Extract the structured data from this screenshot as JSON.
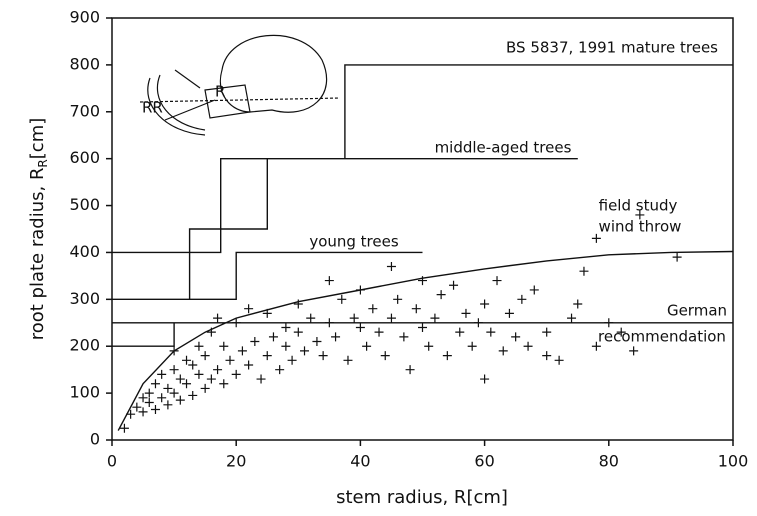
{
  "chart_data": {
    "type": "scatter",
    "xlabel": "stem radius, R[cm]",
    "ylabel": {
      "text": "root plate radius, R",
      "sub": "R",
      "end": "[cm]"
    },
    "xlim": [
      0,
      100
    ],
    "xticks": [
      0,
      20,
      40,
      60,
      80,
      100
    ],
    "ylim": [
      0,
      900
    ],
    "yticks": [
      0,
      100,
      200,
      300,
      400,
      500,
      600,
      700,
      800,
      900
    ],
    "grid": false,
    "color": "#111111",
    "inset_labels": [
      "R",
      "RR"
    ],
    "annotations": [
      "BS 5837, 1991 mature trees",
      "middle-aged trees",
      "young trees",
      "field study",
      "wind throw",
      "German",
      "recommendation"
    ],
    "lines": [
      {
        "x": [
          0,
          17.5,
          17.5,
          75
        ],
        "y": [
          400,
          400,
          600,
          600
        ]
      },
      {
        "x": [
          12.5,
          12.5,
          25,
          25
        ],
        "y": [
          300,
          450,
          450,
          600
        ]
      },
      {
        "x": [
          37.5,
          37.5,
          100
        ],
        "y": [
          600,
          800,
          800
        ]
      },
      {
        "x": [
          0,
          20,
          20,
          50
        ],
        "y": [
          300,
          300,
          400,
          400
        ]
      },
      {
        "x": [
          0,
          100
        ],
        "y": [
          250,
          250
        ]
      },
      {
        "x": [
          0,
          10,
          10
        ],
        "y": [
          200,
          200,
          250
        ]
      },
      {
        "x": [
          1,
          5,
          10,
          15,
          20,
          30,
          40,
          50,
          60,
          70,
          80,
          90,
          100
        ],
        "y": [
          20,
          120,
          190,
          230,
          260,
          295,
          320,
          345,
          365,
          382,
          395,
          400,
          402
        ]
      }
    ],
    "points": {
      "x": [
        2,
        3,
        4,
        5,
        5,
        6,
        6,
        7,
        7,
        8,
        8,
        9,
        9,
        10,
        10,
        10,
        11,
        11,
        12,
        12,
        13,
        13,
        14,
        14,
        15,
        15,
        16,
        16,
        17,
        17,
        18,
        18,
        19,
        20,
        20,
        21,
        22,
        22,
        23,
        24,
        25,
        25,
        26,
        27,
        28,
        28,
        29,
        30,
        30,
        31,
        32,
        33,
        34,
        35,
        35,
        36,
        37,
        38,
        39,
        40,
        40,
        41,
        42,
        43,
        44,
        45,
        45,
        46,
        47,
        48,
        49,
        50,
        50,
        51,
        52,
        53,
        54,
        55,
        56,
        57,
        58,
        59,
        60,
        60,
        61,
        62,
        63,
        64,
        65,
        66,
        67,
        68,
        70,
        70,
        72,
        74,
        75,
        76,
        78,
        78,
        80,
        82,
        84,
        85,
        91
      ],
      "y": [
        25,
        55,
        70,
        60,
        90,
        80,
        100,
        65,
        120,
        90,
        140,
        75,
        110,
        100,
        150,
        190,
        85,
        130,
        120,
        170,
        95,
        160,
        140,
        200,
        110,
        180,
        130,
        230,
        150,
        260,
        120,
        200,
        170,
        140,
        250,
        190,
        160,
        280,
        210,
        130,
        180,
        270,
        220,
        150,
        240,
        200,
        170,
        290,
        230,
        190,
        260,
        210,
        180,
        340,
        250,
        220,
        300,
        170,
        260,
        240,
        320,
        200,
        280,
        230,
        180,
        370,
        260,
        300,
        220,
        150,
        280,
        240,
        340,
        200,
        260,
        310,
        180,
        330,
        230,
        270,
        200,
        250,
        130,
        290,
        230,
        340,
        190,
        270,
        220,
        300,
        200,
        320,
        180,
        230,
        170,
        260,
        290,
        360,
        430,
        200,
        250,
        230,
        190,
        480,
        390
      ]
    }
  }
}
